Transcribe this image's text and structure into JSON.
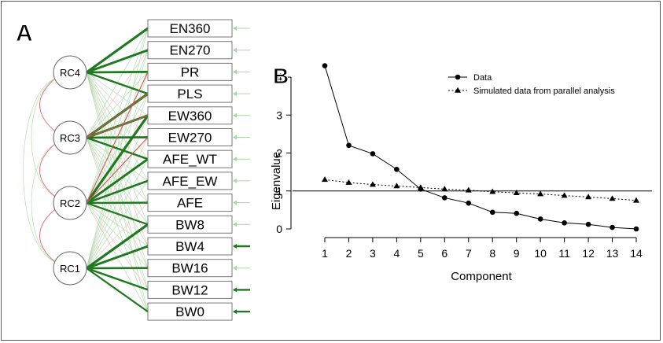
{
  "panels": {
    "a_label": "A",
    "b_label": "B"
  },
  "colors": {
    "positive_loading": "#1f7a1f",
    "negative_loading": "#d9534f",
    "faint_positive": "#a6d8a6",
    "faint_negative": "#f2b8b5",
    "ink": "#000000"
  },
  "path_diagram": {
    "factors": [
      "RC4",
      "RC3",
      "RC2",
      "RC1"
    ],
    "indicators": [
      "EN360",
      "EN270",
      "PR",
      "PLS",
      "EW360",
      "EW270",
      "AFE_WT",
      "AFE_EW",
      "AFE",
      "BW8",
      "BW4",
      "BW16",
      "BW12",
      "BW0"
    ],
    "strong_loadings": {
      "RC4": [
        "EN360",
        "EN270",
        "PR",
        "PLS"
      ],
      "RC3": [
        "PLS",
        "EW360",
        "EW270",
        "AFE_WT"
      ],
      "RC2": [
        "EW360",
        "AFE_WT",
        "AFE_EW",
        "AFE",
        "BW8"
      ],
      "RC1": [
        "BW8",
        "BW4",
        "BW16",
        "BW12",
        "BW0"
      ]
    },
    "strong_residuals": [
      "BW4",
      "BW12",
      "BW0"
    ]
  },
  "chart_data": {
    "type": "line",
    "title": "",
    "xlabel": "Component",
    "ylabel": "Eigenvalue",
    "x": [
      1,
      2,
      3,
      4,
      5,
      6,
      7,
      8,
      9,
      10,
      11,
      12,
      13,
      14
    ],
    "xlim": [
      1,
      14
    ],
    "ylim": [
      0,
      4
    ],
    "yticks": [
      0,
      1,
      2,
      3,
      4
    ],
    "reference_line": 1,
    "legend_position": "top-right",
    "series": [
      {
        "name": "Data",
        "marker": "circle",
        "line": "solid",
        "values": [
          4.3,
          2.2,
          1.98,
          1.57,
          1.05,
          0.82,
          0.68,
          0.44,
          0.41,
          0.26,
          0.16,
          0.12,
          0.04,
          0.0
        ]
      },
      {
        "name": "Simulated data from parallel analysis",
        "marker": "triangle",
        "line": "dotted",
        "values": [
          1.3,
          1.22,
          1.17,
          1.13,
          1.09,
          1.05,
          1.02,
          0.98,
          0.95,
          0.92,
          0.88,
          0.84,
          0.8,
          0.75
        ]
      }
    ]
  }
}
